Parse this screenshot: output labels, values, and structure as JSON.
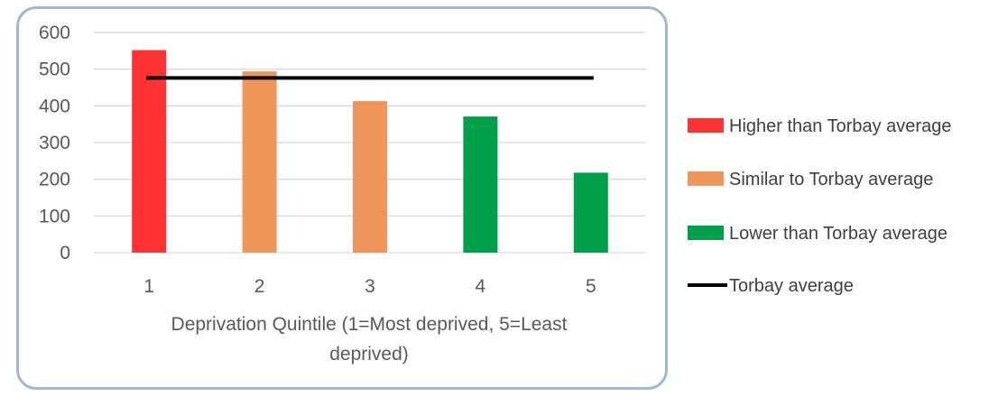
{
  "chart_data": {
    "type": "bar",
    "categories": [
      "1",
      "2",
      "3",
      "4",
      "5"
    ],
    "values": [
      552,
      494,
      413,
      371,
      218
    ],
    "bar_colors": [
      "#ff3333",
      "#f0965a",
      "#f0965a",
      "#00a04a",
      "#00a04a"
    ],
    "reference_line": {
      "name": "Torbay average",
      "value": 476,
      "color": "#000000"
    },
    "xlabel": "Deprivation Quintile (1=Most deprived, 5=Least deprived)",
    "xlabel_lines": [
      "Deprivation Quintile (1=Most deprived, 5=Least",
      "deprived)"
    ],
    "ylabel": "",
    "ylim": [
      0,
      600
    ],
    "yticks": [
      "0",
      "100",
      "200",
      "300",
      "400",
      "500",
      "600"
    ],
    "grid": true,
    "legend_position": "right",
    "legend": [
      {
        "label": "Higher than Torbay average",
        "color": "#ff3333",
        "kind": "box"
      },
      {
        "label": "Similar to Torbay average",
        "color": "#f0965a",
        "kind": "box"
      },
      {
        "label": "Lower than Torbay average",
        "color": "#00a04a",
        "kind": "box"
      },
      {
        "label": "Torbay average",
        "color": "#000000",
        "kind": "line"
      }
    ]
  }
}
